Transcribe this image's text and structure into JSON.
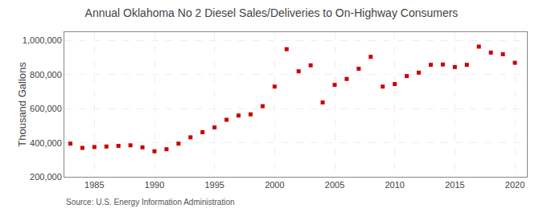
{
  "chart_data": {
    "type": "scatter",
    "title": "Annual Oklahoma No 2 Diesel Sales/Deliveries to On-Highway Consumers",
    "ylabel": "Thousand Gallons",
    "annotations": [
      "Source: U.S. Energy Information Administration"
    ],
    "x": [
      1983,
      1984,
      1985,
      1986,
      1987,
      1988,
      1989,
      1990,
      1991,
      1992,
      1993,
      1994,
      1995,
      1996,
      1997,
      1998,
      1999,
      2000,
      2001,
      2002,
      2003,
      2004,
      2005,
      2006,
      2007,
      2008,
      2009,
      2010,
      2011,
      2012,
      2013,
      2014,
      2015,
      2016,
      2017,
      2018,
      2019,
      2020
    ],
    "values": [
      395000,
      370000,
      375000,
      378000,
      382000,
      385000,
      373000,
      350000,
      362000,
      395000,
      432000,
      462000,
      490000,
      535000,
      560000,
      567000,
      615000,
      730000,
      950000,
      820000,
      855000,
      637000,
      740000,
      775000,
      835000,
      905000,
      730000,
      745000,
      792000,
      812000,
      858000,
      860000,
      845000,
      858000,
      965000,
      930000,
      920000,
      870000
    ],
    "color": "#cc0000",
    "marker": "square",
    "xlim": [
      1982.5,
      2021
    ],
    "xticks": [
      1985,
      1990,
      1995,
      2000,
      2005,
      2010,
      2015,
      2020
    ],
    "ylim": [
      200000,
      1050000
    ],
    "yticks": [
      {
        "value": 200000,
        "label": "200,000"
      },
      {
        "value": 400000,
        "label": "400,000"
      },
      {
        "value": 600000,
        "label": "600,000"
      },
      {
        "value": 800000,
        "label": "800,000"
      },
      {
        "value": 1000000,
        "label": "1,000,000"
      }
    ],
    "grid": true
  }
}
